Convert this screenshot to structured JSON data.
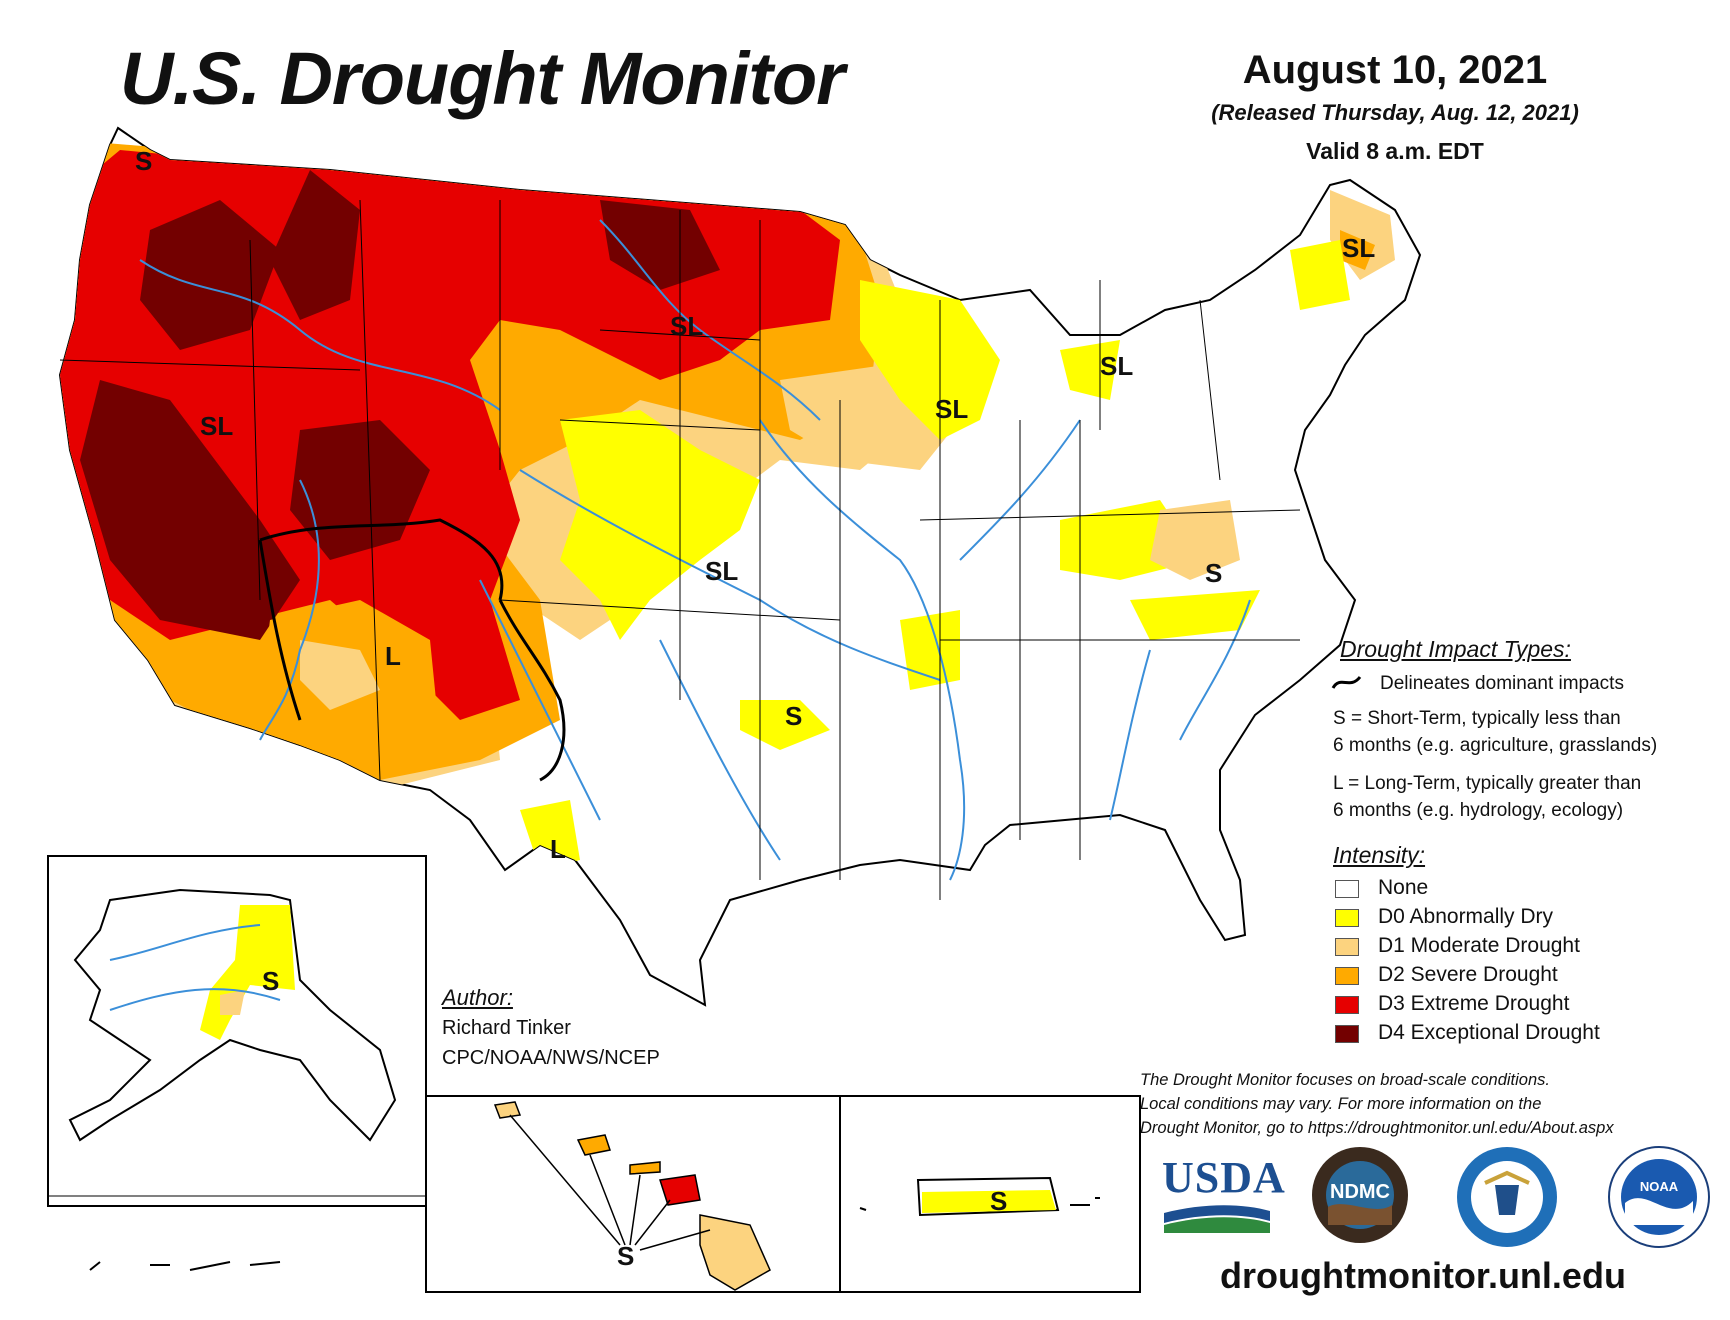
{
  "header": {
    "title": "U.S. Drought Monitor",
    "date": "August 10, 2021",
    "released": "(Released Thursday, Aug. 12, 2021)",
    "valid": "Valid 8 a.m. EDT"
  },
  "impact_types": {
    "heading": "Drought Impact Types:",
    "delineates": "Delineates dominant impacts",
    "short_term_line1": "S = Short-Term, typically less than",
    "short_term_line2": "6 months (e.g. agriculture, grasslands)",
    "long_term_line1": "L = Long-Term, typically greater than",
    "long_term_line2": "6 months (e.g. hydrology, ecology)"
  },
  "intensity": {
    "heading": "Intensity:",
    "items": [
      {
        "label": "None",
        "color": "#ffffff"
      },
      {
        "label": "D0 Abnormally Dry",
        "color": "#ffff00"
      },
      {
        "label": "D1 Moderate Drought",
        "color": "#fcd37f"
      },
      {
        "label": "D2 Severe Drought",
        "color": "#ffaa00"
      },
      {
        "label": "D3 Extreme Drought",
        "color": "#e60000"
      },
      {
        "label": "D4 Exceptional Drought",
        "color": "#730000"
      }
    ]
  },
  "author": {
    "heading": "Author:",
    "name": "Richard Tinker",
    "org": "CPC/NOAA/NWS/NCEP"
  },
  "disclaimer": {
    "line1": "The Drought Monitor focuses on broad-scale conditions.",
    "line2": "Local conditions may vary. For more information on the",
    "line3": "Drought Monitor, go to https://droughtmonitor.unl.edu/About.aspx"
  },
  "logos": {
    "usda": "USDA",
    "ndmc": "NDMC",
    "noaa": "NOAA"
  },
  "url": "droughtmonitor.unl.edu",
  "map_labels": {
    "s": "S",
    "l": "L",
    "sl": "SL"
  },
  "colors": {
    "none": "#ffffff",
    "d0": "#ffff00",
    "d1": "#fcd37f",
    "d2": "#ffaa00",
    "d3": "#e60000",
    "d4": "#730000",
    "river": "#3b8fd9"
  }
}
